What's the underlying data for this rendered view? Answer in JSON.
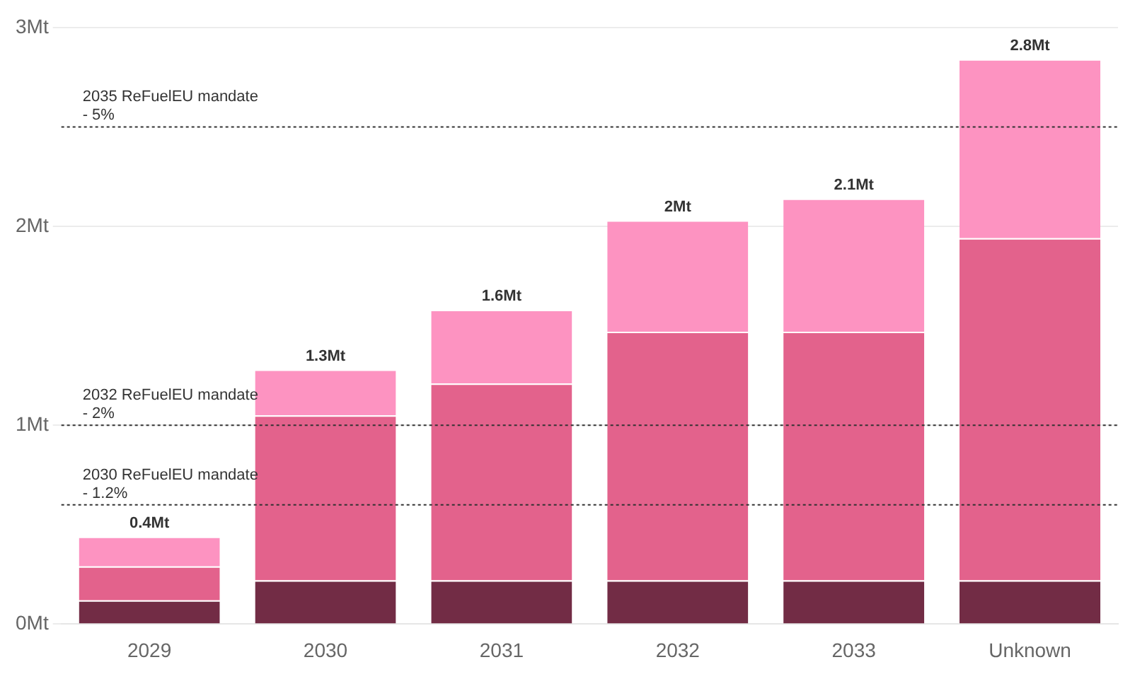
{
  "chart_data": {
    "type": "bar",
    "stacked": true,
    "categories": [
      "2029",
      "2030",
      "2031",
      "2032",
      "2033",
      "Unknown"
    ],
    "series": [
      {
        "color": "#722c45",
        "values": [
          0.12,
          0.22,
          0.22,
          0.22,
          0.22,
          0.22
        ]
      },
      {
        "color": "#e3628c",
        "values": [
          0.17,
          0.83,
          0.99,
          1.25,
          1.25,
          1.72
        ]
      },
      {
        "color": "#fd93c1",
        "values": [
          0.15,
          0.23,
          0.37,
          0.56,
          0.67,
          0.9
        ]
      }
    ],
    "totals": [
      "0.4Mt",
      "1.3Mt",
      "1.6Mt",
      "2Mt",
      "2.1Mt",
      "2.8Mt"
    ],
    "ylim": [
      0,
      3
    ],
    "yticks": [
      {
        "value": 0,
        "label": "0Mt"
      },
      {
        "value": 1,
        "label": "1Mt"
      },
      {
        "value": 2,
        "label": "2Mt"
      },
      {
        "value": 3,
        "label": "3Mt"
      }
    ],
    "grid": "y",
    "legend": false,
    "ref_lines": [
      {
        "axis": "y",
        "value": 2.5,
        "label": "2035 ReFuelEU mandate - 5%",
        "color": "#333333",
        "line_style": "dotted"
      },
      {
        "axis": "y",
        "value": 1,
        "label": "2032 ReFuelEU mandate - 2%",
        "color": "#333333",
        "line_style": "dotted"
      },
      {
        "axis": "y",
        "value": 0.6,
        "label": "2030 ReFuelEU mandate - 1.2%",
        "color": "#333333",
        "line_style": "dotted"
      }
    ]
  }
}
